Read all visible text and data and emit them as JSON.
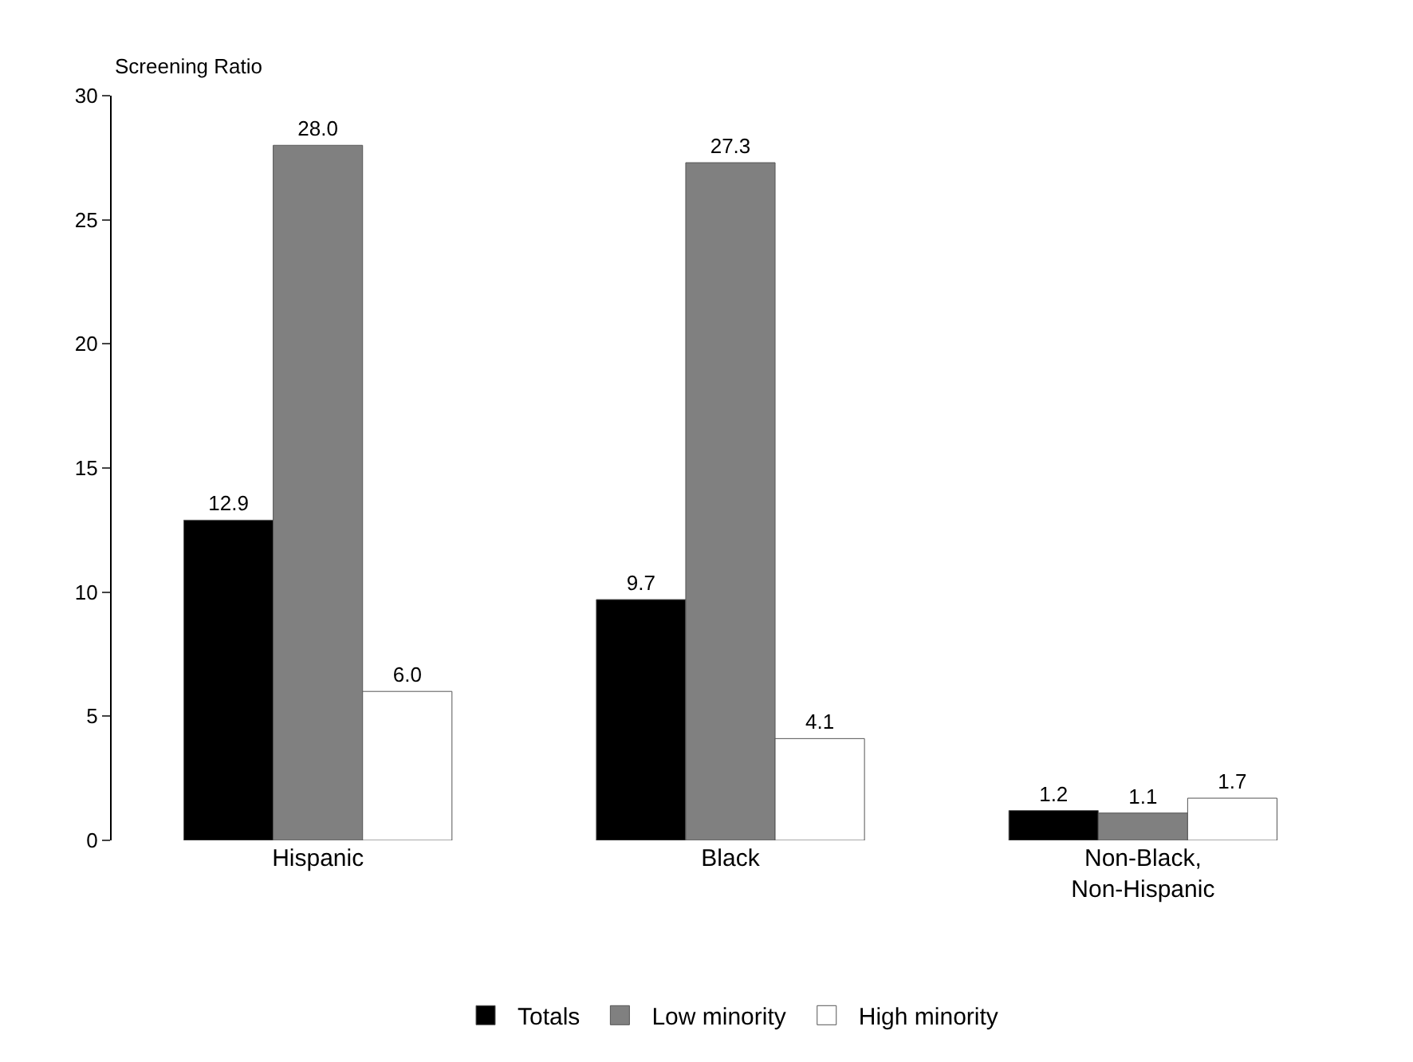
{
  "chart_data": {
    "type": "bar",
    "ylabel": "Screening Ratio",
    "categories": [
      "Hispanic",
      "Black",
      "Non-Black,\nNon-Hispanic"
    ],
    "series": [
      {
        "name": "Totals",
        "color": "#000000",
        "values": [
          12.9,
          9.7,
          1.2
        ],
        "value_labels": [
          "12.9",
          "9.7",
          "1.2"
        ]
      },
      {
        "name": "Low minority",
        "color": "#808080",
        "values": [
          28.0,
          27.3,
          1.1
        ],
        "value_labels": [
          "28.0",
          "27.3",
          "1.1"
        ]
      },
      {
        "name": "High minority",
        "color": "#ffffff",
        "values": [
          6.0,
          4.1,
          1.7
        ],
        "value_labels": [
          "6.0",
          "4.1",
          "1.7"
        ]
      }
    ],
    "ylim": [
      0,
      30
    ],
    "yticks": [
      0,
      5,
      10,
      15,
      20,
      25,
      30
    ],
    "grid": false,
    "legend": "bottom"
  }
}
